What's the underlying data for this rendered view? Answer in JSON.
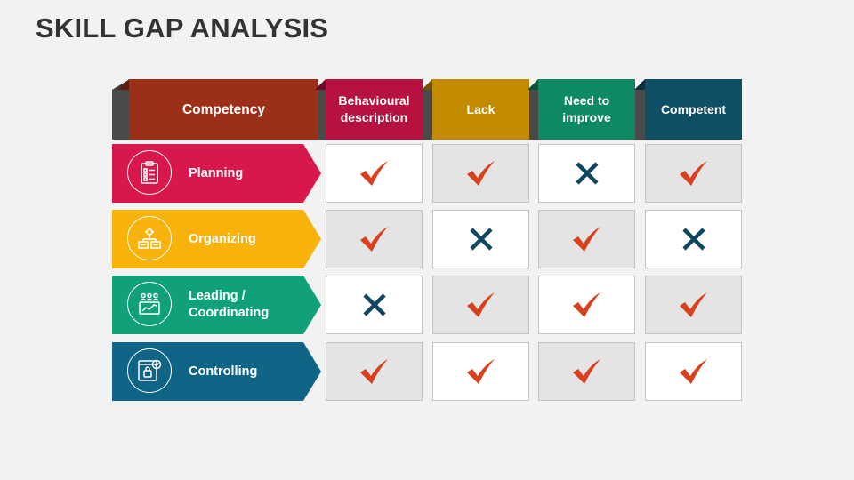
{
  "title": "SKILL GAP ANALYSIS",
  "colors": {
    "competency": "#9b2f18",
    "behavioural": "#b5123f",
    "lack": "#c48a00",
    "need": "#0d8a63",
    "competent": "#0f4f66",
    "planning": "#d8174a",
    "organizing": "#f7b20c",
    "leading": "#10a07a",
    "controlling": "#106586",
    "check": "#d9411e",
    "cross": "#11475e"
  },
  "headers": {
    "competency": "Competency",
    "behavioural": [
      "Behavioural",
      "description"
    ],
    "lack": "Lack",
    "need": [
      "Need to",
      "improve"
    ],
    "competent": "Competent"
  },
  "rows": [
    {
      "label": [
        "Planning"
      ],
      "icon": "clipboard-checklist-icon",
      "marks": [
        "check",
        "check",
        "cross",
        "check"
      ]
    },
    {
      "label": [
        "Organizing"
      ],
      "icon": "gear-flowchart-icon",
      "marks": [
        "check",
        "cross",
        "check",
        "cross"
      ]
    },
    {
      "label": [
        "Leading /",
        "Coordinating"
      ],
      "icon": "people-presentation-icon",
      "marks": [
        "cross",
        "check",
        "check",
        "check"
      ]
    },
    {
      "label": [
        "Controlling"
      ],
      "icon": "secure-monitor-icon",
      "marks": [
        "check",
        "check",
        "check",
        "check"
      ]
    }
  ]
}
